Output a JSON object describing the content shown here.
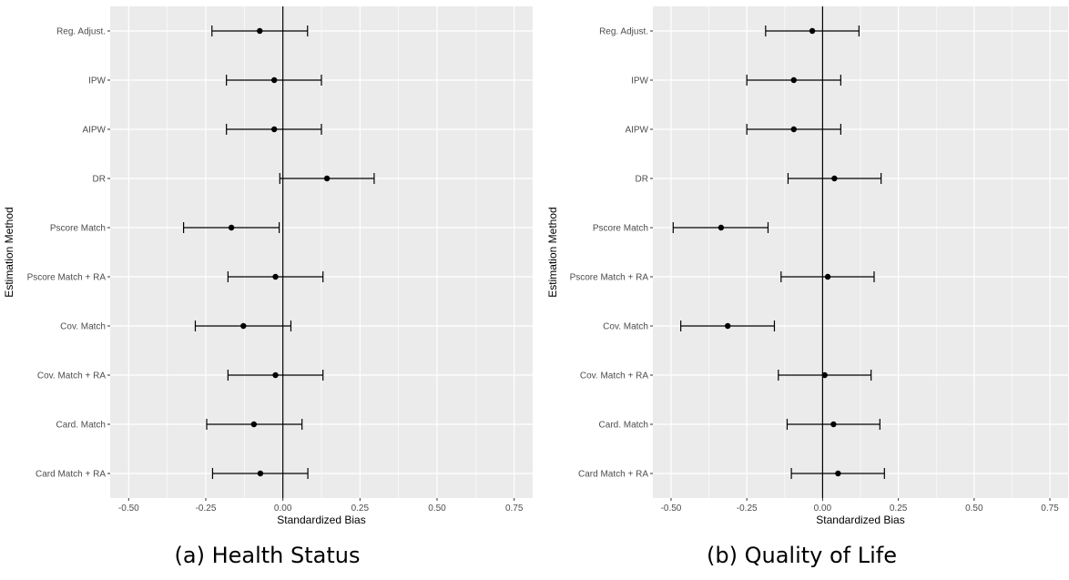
{
  "chart_data": [
    {
      "type": "errorbar",
      "panel": "a",
      "caption": "(a) Health Status",
      "xlabel": "Standardized Bias",
      "ylabel": "Estimation Method",
      "xlim": [
        -0.56,
        0.81
      ],
      "xticks": [
        -0.5,
        -0.25,
        0.0,
        0.25,
        0.5,
        0.75
      ],
      "xtick_labels": [
        "-0.50",
        "-0.25",
        "0.00",
        "0.25",
        "0.50",
        "0.75"
      ],
      "reference_line_x": 0,
      "grid": true,
      "background": "#EBEBEB",
      "categories": [
        "Reg. Adjust.",
        "IPW",
        "AIPW",
        "DR",
        "Pscore Match",
        "Pscore Match + RA",
        "Cov. Match",
        "Cov. Match + RA",
        "Card. Match",
        "Card Match + RA"
      ],
      "estimates": [
        -0.075,
        -0.028,
        -0.028,
        0.143,
        -0.167,
        -0.024,
        -0.128,
        -0.024,
        -0.094,
        -0.073
      ],
      "lower": [
        -0.23,
        -0.183,
        -0.183,
        -0.01,
        -0.322,
        -0.178,
        -0.284,
        -0.178,
        -0.247,
        -0.228
      ],
      "upper": [
        0.08,
        0.125,
        0.125,
        0.296,
        -0.012,
        0.13,
        0.026,
        0.13,
        0.062,
        0.081
      ]
    },
    {
      "type": "errorbar",
      "panel": "b",
      "caption": "(b) Quality of Life",
      "xlabel": "Standardized Bias",
      "ylabel": "Estimation Method",
      "xlim": [
        -0.56,
        0.81
      ],
      "xticks": [
        -0.5,
        -0.25,
        0.0,
        0.25,
        0.5,
        0.75
      ],
      "xtick_labels": [
        "-0.50",
        "-0.25",
        "0.00",
        "0.25",
        "0.50",
        "0.75"
      ],
      "reference_line_x": 0,
      "grid": true,
      "background": "#EBEBEB",
      "categories": [
        "Reg. Adjust.",
        "IPW",
        "AIPW",
        "DR",
        "Pscore Match",
        "Pscore Match + RA",
        "Cov. Match",
        "Cov. Match + RA",
        "Card. Match",
        "Card Match + RA"
      ],
      "estimates": [
        -0.034,
        -0.095,
        -0.095,
        0.039,
        -0.335,
        0.017,
        -0.313,
        0.007,
        0.036,
        0.051
      ],
      "lower": [
        -0.188,
        -0.25,
        -0.25,
        -0.114,
        -0.493,
        -0.137,
        -0.468,
        -0.146,
        -0.117,
        -0.103
      ],
      "upper": [
        0.12,
        0.06,
        0.06,
        0.193,
        -0.18,
        0.17,
        -0.159,
        0.16,
        0.189,
        0.204
      ]
    }
  ]
}
